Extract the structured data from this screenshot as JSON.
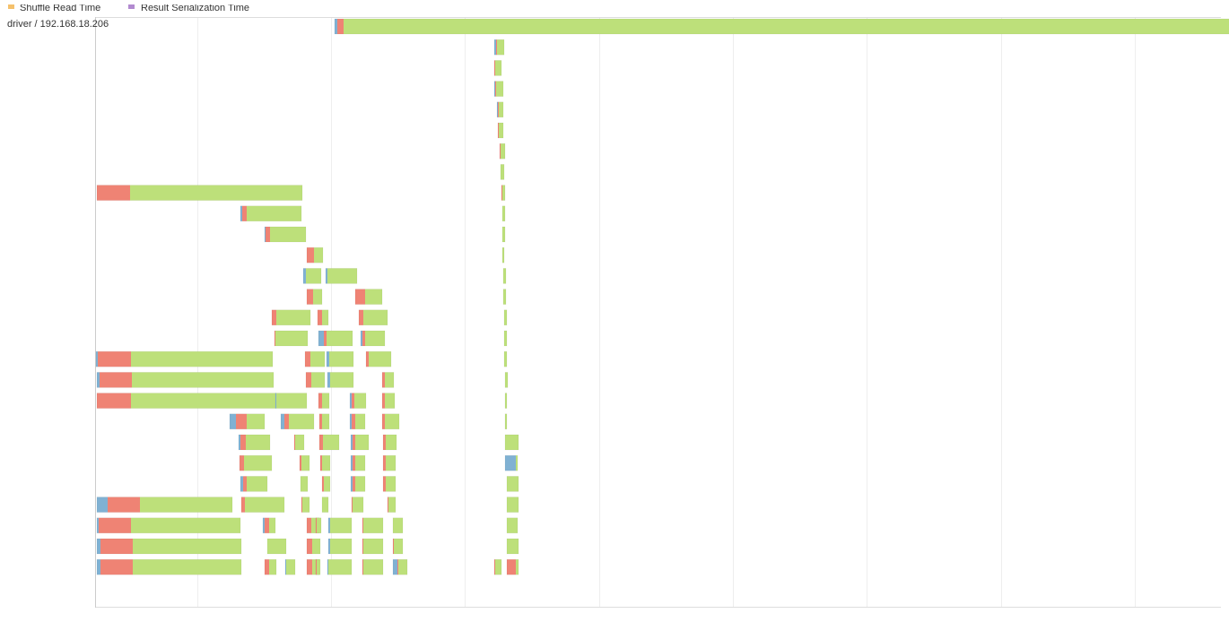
{
  "legend": {
    "items": [
      "Shuffle Read Time",
      "Result Serialization Time"
    ]
  },
  "timeline": {
    "driver_label": "driver / 192.168.18.206"
  }
}
